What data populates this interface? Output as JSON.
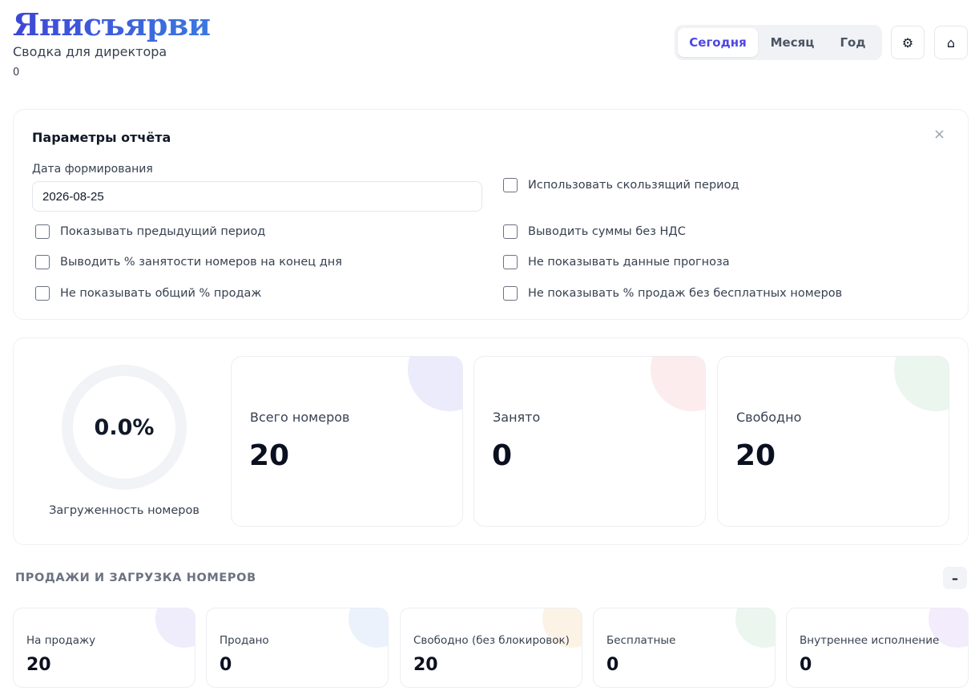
{
  "header": {
    "brand": "Янисъярви",
    "subtitle": "Сводка для директора",
    "counter": "0"
  },
  "period_tabs": [
    {
      "label": "Сегодня",
      "active": true
    },
    {
      "label": "Месяц",
      "active": false
    },
    {
      "label": "Год",
      "active": false
    }
  ],
  "toolbar": {
    "settings_icon": "gear-icon",
    "settings_glyph": "⚙",
    "home_icon": "home-icon",
    "home_glyph": "⌂"
  },
  "params": {
    "title": "Параметры отчёта",
    "close_glyph": "×",
    "date_label": "Дата формирования",
    "date_value": "2026-08-25",
    "options": {
      "rolling_period": "Использовать скользящий период",
      "show_previous": "Показывать предыдущий период",
      "sums_without_vat": "Выводить суммы без НДС",
      "occupancy_end_of_day": "Выводить % занятости номеров на конец дня",
      "hide_forecast": "Не показывать данные прогноза",
      "hide_total_sales": "Не показывать общий % продаж",
      "hide_sales_without_free": "Не показывать % продаж без бесплатных номеров"
    }
  },
  "occupancy": {
    "value": "0.0%",
    "label": "Загруженность номеров"
  },
  "kpis": [
    {
      "label": "Всего номеров",
      "value": "20",
      "accent": "#ecebfb"
    },
    {
      "label": "Занято",
      "value": "0",
      "accent": "#fdeced"
    },
    {
      "label": "Свободно",
      "value": "20",
      "accent": "#ebf6ee"
    }
  ],
  "sales": {
    "title": "ПРОДАЖИ И ЗАГРУЗКА НОМЕРОВ",
    "collapse_glyph": "–",
    "cards": [
      {
        "label": "На продажу",
        "value": "20",
        "accent": "#efedfb"
      },
      {
        "label": "Продано",
        "value": "0",
        "accent": "#ebf2fc"
      },
      {
        "label": "Свободно (без блокировок)",
        "value": "20",
        "accent": "#fdf2e6"
      },
      {
        "label": "Бесплатные",
        "value": "0",
        "accent": "#ebf6ee"
      },
      {
        "label": "Внутреннее исполнение",
        "value": "0",
        "accent": "#f3ecfc"
      }
    ]
  }
}
